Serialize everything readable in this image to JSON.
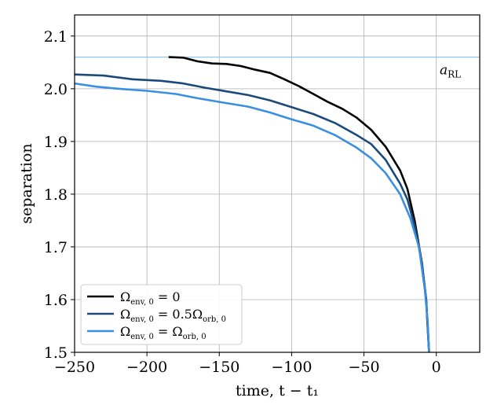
{
  "chart_data": {
    "type": "line",
    "xlabel": "time, t − t₁",
    "ylabel": "separation",
    "xlim": [
      -250,
      30
    ],
    "ylim": [
      1.5,
      2.14
    ],
    "grid": true,
    "legend_position": "lower-left",
    "x_ticks": [
      -250,
      -200,
      -150,
      -100,
      -50,
      0
    ],
    "x_tick_labels": [
      "−250",
      "−200",
      "−150",
      "−100",
      "−50",
      "0"
    ],
    "y_ticks": [
      1.5,
      1.6,
      1.7,
      1.8,
      1.9,
      2.0,
      2.1
    ],
    "y_tick_labels": [
      "1.5",
      "1.6",
      "1.7",
      "1.8",
      "1.9",
      "2.0",
      "2.1"
    ],
    "reference_line": {
      "y": 2.06,
      "label": "a_RL",
      "color": "#8ec7ea"
    },
    "series": [
      {
        "name": "Ω_env,0 = 0",
        "color": "#000000",
        "points": [
          [
            -185,
            2.06
          ],
          [
            -175,
            2.059
          ],
          [
            -165,
            2.052
          ],
          [
            -155,
            2.048
          ],
          [
            -145,
            2.047
          ],
          [
            -135,
            2.043
          ],
          [
            -125,
            2.036
          ],
          [
            -115,
            2.03
          ],
          [
            -105,
            2.018
          ],
          [
            -95,
            2.005
          ],
          [
            -85,
            1.99
          ],
          [
            -75,
            1.975
          ],
          [
            -65,
            1.962
          ],
          [
            -55,
            1.945
          ],
          [
            -45,
            1.922
          ],
          [
            -35,
            1.89
          ],
          [
            -25,
            1.845
          ],
          [
            -20,
            1.81
          ],
          [
            -15,
            1.75
          ],
          [
            -10,
            1.67
          ],
          [
            -7,
            1.6
          ],
          [
            -5,
            1.5
          ]
        ]
      },
      {
        "name": "Ω_env,0 = 0.5Ω_orb,0",
        "color": "#1b4a7a",
        "points": [
          [
            -250,
            2.027
          ],
          [
            -230,
            2.025
          ],
          [
            -210,
            2.018
          ],
          [
            -190,
            2.015
          ],
          [
            -175,
            2.01
          ],
          [
            -160,
            2.002
          ],
          [
            -145,
            1.995
          ],
          [
            -130,
            1.988
          ],
          [
            -115,
            1.978
          ],
          [
            -100,
            1.965
          ],
          [
            -85,
            1.952
          ],
          [
            -70,
            1.935
          ],
          [
            -55,
            1.912
          ],
          [
            -45,
            1.895
          ],
          [
            -35,
            1.865
          ],
          [
            -25,
            1.82
          ],
          [
            -20,
            1.79
          ],
          [
            -15,
            1.74
          ],
          [
            -10,
            1.67
          ],
          [
            -7,
            1.6
          ],
          [
            -5,
            1.5
          ]
        ]
      },
      {
        "name": "Ω_env,0 = Ω_orb,0",
        "color": "#3a8fe0",
        "points": [
          [
            -250,
            2.01
          ],
          [
            -235,
            2.004
          ],
          [
            -220,
            2.0
          ],
          [
            -200,
            1.996
          ],
          [
            -180,
            1.99
          ],
          [
            -165,
            1.982
          ],
          [
            -150,
            1.975
          ],
          [
            -130,
            1.966
          ],
          [
            -115,
            1.955
          ],
          [
            -100,
            1.942
          ],
          [
            -85,
            1.93
          ],
          [
            -70,
            1.912
          ],
          [
            -55,
            1.888
          ],
          [
            -45,
            1.868
          ],
          [
            -35,
            1.84
          ],
          [
            -25,
            1.8
          ],
          [
            -18,
            1.755
          ],
          [
            -12,
            1.7
          ],
          [
            -8,
            1.62
          ],
          [
            -6,
            1.56
          ],
          [
            -5,
            1.5
          ]
        ]
      }
    ]
  },
  "legend": {
    "entries": [
      {
        "main": "Ω",
        "sub": "env, 0",
        "rest": " = 0",
        "rsub": ""
      },
      {
        "main": "Ω",
        "sub": "env, 0",
        "rest": " = 0.5Ω",
        "rsub": "orb, 0"
      },
      {
        "main": "Ω",
        "sub": "env, 0",
        "rest": " = Ω",
        "rsub": "orb, 0"
      }
    ]
  },
  "annotation": {
    "main": "a",
    "sub": "RL"
  }
}
